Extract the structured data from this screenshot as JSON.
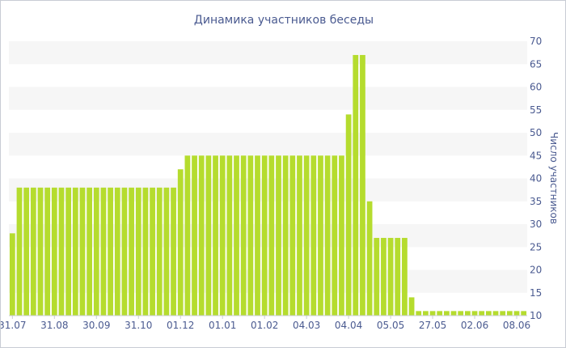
{
  "chart_data": {
    "type": "bar",
    "title": "Динамика участников беседы",
    "xlabel": "",
    "ylabel": "Число участников",
    "ylim": [
      10,
      70
    ],
    "y_ticks": [
      10,
      15,
      20,
      25,
      30,
      35,
      40,
      45,
      50,
      55,
      60,
      65,
      70
    ],
    "y_axis_side": "right",
    "grid": "alternating horizontal bands",
    "bar_color": "#b5dc2e",
    "band_color": "#f6f6f6",
    "text_color": "#4a5a90",
    "x_tick_labels": [
      "31.07",
      "31.08",
      "30.09",
      "31.10",
      "01.12",
      "01.01",
      "01.02",
      "04.03",
      "04.04",
      "05.05",
      "27.05",
      "02.06",
      "08.06"
    ],
    "x_tick_bar_index": [
      0,
      6,
      12,
      18,
      24,
      30,
      36,
      42,
      48,
      54,
      60,
      66,
      72
    ],
    "values": [
      28,
      38,
      38,
      38,
      38,
      38,
      38,
      38,
      38,
      38,
      38,
      38,
      38,
      38,
      38,
      38,
      38,
      38,
      38,
      38,
      38,
      38,
      38,
      38,
      42,
      45,
      45,
      45,
      45,
      45,
      45,
      45,
      45,
      45,
      45,
      45,
      45,
      45,
      45,
      45,
      45,
      45,
      45,
      45,
      45,
      45,
      45,
      45,
      54,
      67,
      67,
      35,
      27,
      27,
      27,
      27,
      27,
      14,
      11,
      11,
      11,
      11,
      11,
      11,
      11,
      11,
      11,
      11,
      11,
      11,
      11,
      11,
      11,
      11
    ]
  }
}
